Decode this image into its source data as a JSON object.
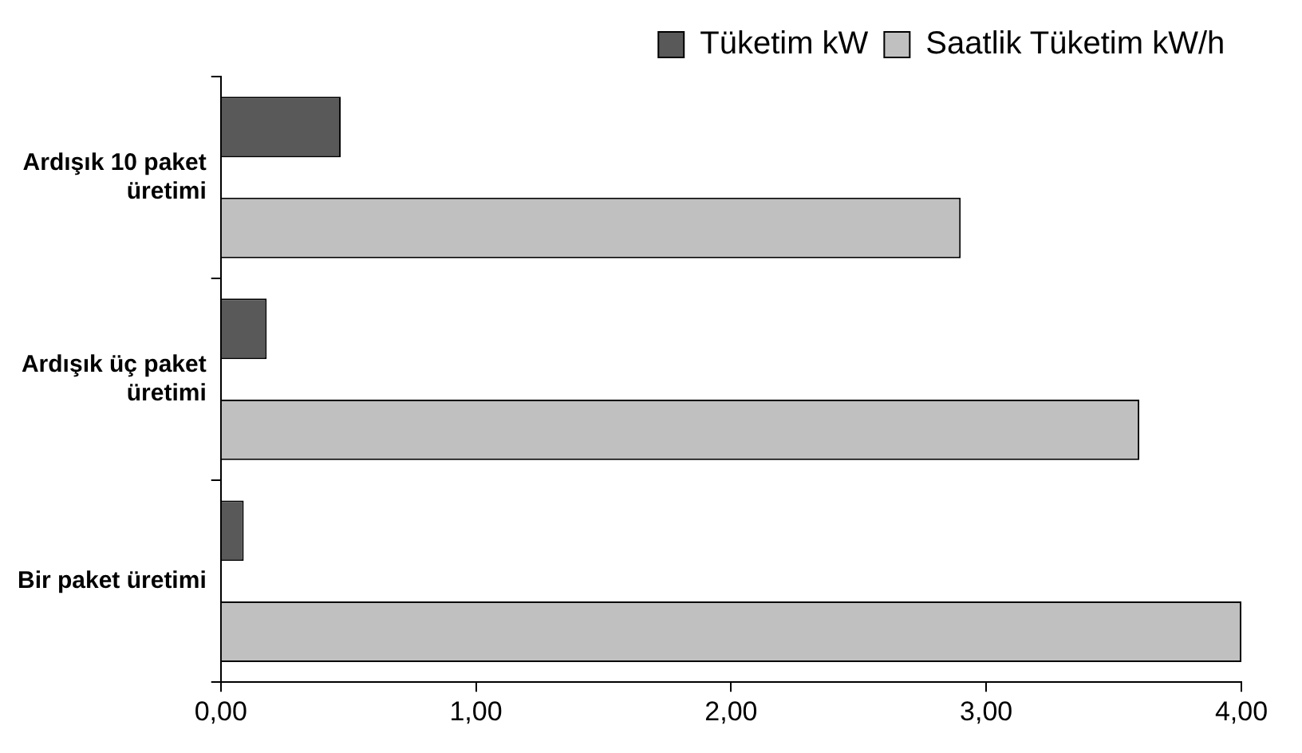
{
  "chart_data": {
    "type": "bar",
    "orientation": "horizontal",
    "categories": [
      "Ardışık 10 paket üretimi",
      "Ardışık üç paket üretimi",
      "Bir paket üretimi"
    ],
    "series": [
      {
        "name": "Tüketim kW",
        "color": "#595959",
        "values": [
          0.47,
          0.18,
          0.09
        ]
      },
      {
        "name": "Saatlik Tüketim kW/h",
        "color": "#c0c0c0",
        "values": [
          2.9,
          3.6,
          4.0
        ]
      }
    ],
    "xlim": [
      0,
      4
    ],
    "xticks": [
      {
        "value": 0,
        "label": "0,00"
      },
      {
        "value": 1,
        "label": "1,00"
      },
      {
        "value": 2,
        "label": "2,00"
      },
      {
        "value": 3,
        "label": "3,00"
      },
      {
        "value": 4,
        "label": "4,00"
      }
    ],
    "grid": false,
    "legend": "top right"
  }
}
